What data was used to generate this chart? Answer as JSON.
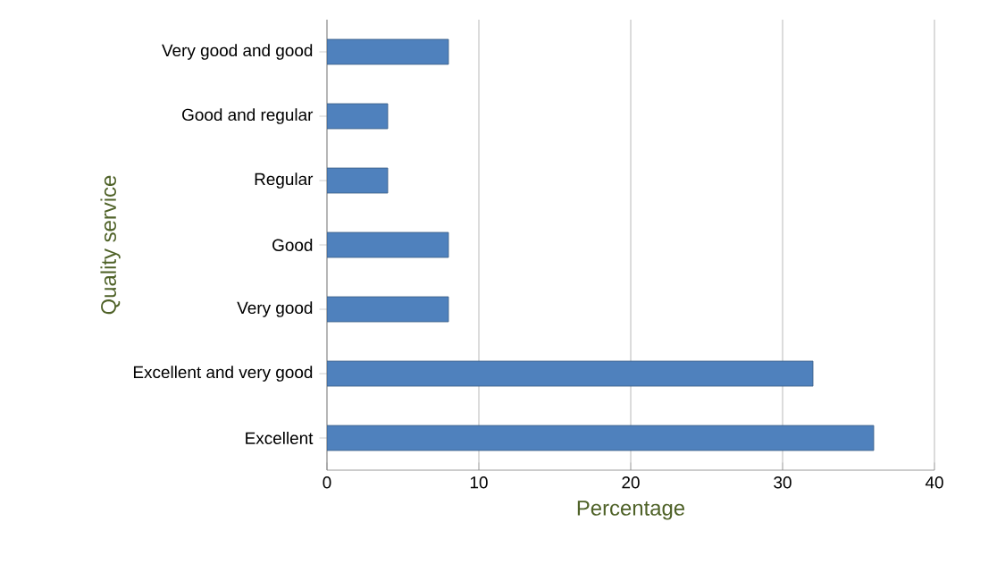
{
  "chart_data": {
    "type": "bar",
    "orientation": "horizontal",
    "xlabel": "Percentage",
    "ylabel": "Quality service",
    "categories": [
      "Very good and good",
      "Good and regular",
      "Regular",
      "Good",
      "Very good",
      "Excellent and very good",
      "Excellent"
    ],
    "values": [
      8,
      4,
      4,
      8,
      8,
      32,
      36
    ],
    "color": "#4f81bd",
    "xlim": [
      0,
      40
    ],
    "xticks": [
      0,
      10,
      20,
      30,
      40
    ],
    "grid": "x"
  }
}
